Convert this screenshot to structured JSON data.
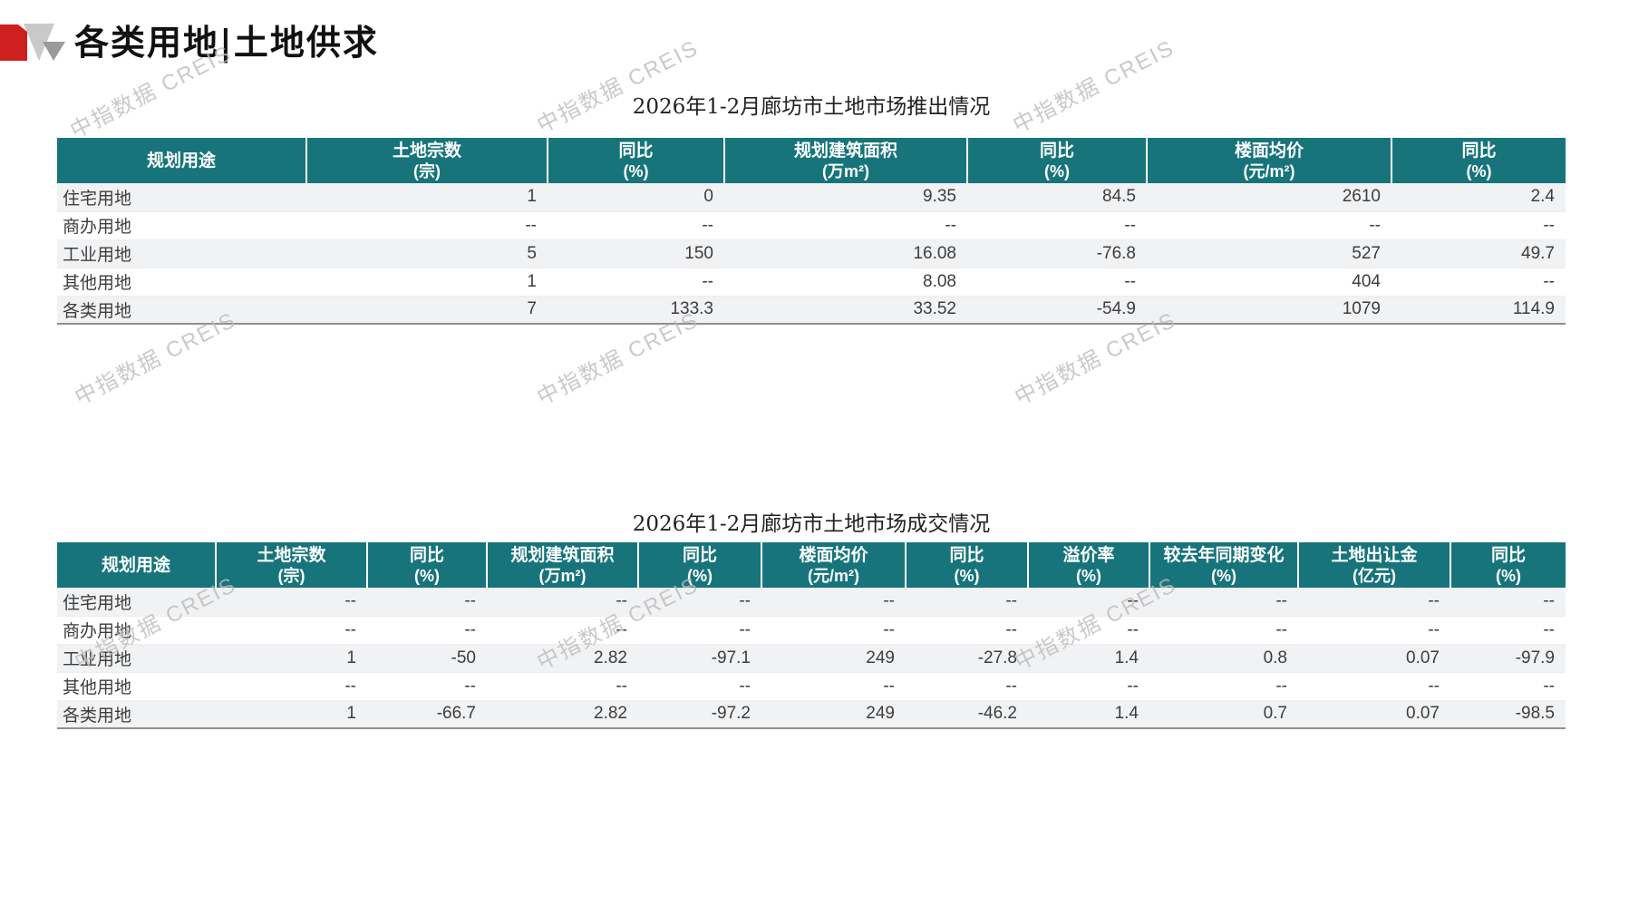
{
  "page": {
    "heading": "各类用地|土地供求",
    "watermark": "中指数据 CREIS"
  },
  "colors": {
    "header_bg": "#17747b",
    "stripe": "#f1f2f4",
    "logo_red": "#cf2020",
    "logo_gray_light": "#c9c9c9",
    "logo_gray_dark": "#9a9a9a"
  },
  "tables": [
    {
      "title": "2026年1-2月廊坊市土地市场推出情况",
      "columns": [
        {
          "label": "规划用途",
          "unit": ""
        },
        {
          "label": "土地宗数",
          "unit": "(宗)"
        },
        {
          "label": "同比",
          "unit": "(%)"
        },
        {
          "label": "规划建筑面积",
          "unit": "(万m²)"
        },
        {
          "label": "同比",
          "unit": "(%)"
        },
        {
          "label": "楼面均价",
          "unit": "(元/m²)"
        },
        {
          "label": "同比",
          "unit": "(%)"
        }
      ],
      "rows": [
        [
          "住宅用地",
          "1",
          "0",
          "9.35",
          "84.5",
          "2610",
          "2.4"
        ],
        [
          "商办用地",
          "--",
          "--",
          "--",
          "--",
          "--",
          "--"
        ],
        [
          "工业用地",
          "5",
          "150",
          "16.08",
          "-76.8",
          "527",
          "49.7"
        ],
        [
          "其他用地",
          "1",
          "--",
          "8.08",
          "--",
          "404",
          "--"
        ],
        [
          "各类用地",
          "7",
          "133.3",
          "33.52",
          "-54.9",
          "1079",
          "114.9"
        ]
      ]
    },
    {
      "title": "2026年1-2月廊坊市土地市场成交情况",
      "columns": [
        {
          "label": "规划用途",
          "unit": ""
        },
        {
          "label": "土地宗数",
          "unit": "(宗)"
        },
        {
          "label": "同比",
          "unit": "(%)"
        },
        {
          "label": "规划建筑面积",
          "unit": "(万m²)"
        },
        {
          "label": "同比",
          "unit": "(%)"
        },
        {
          "label": "楼面均价",
          "unit": "(元/m²)"
        },
        {
          "label": "同比",
          "unit": "(%)"
        },
        {
          "label": "溢价率",
          "unit": "(%)"
        },
        {
          "label": "较去年同期变化",
          "unit": "(%)"
        },
        {
          "label": "土地出让金",
          "unit": "(亿元)"
        },
        {
          "label": "同比",
          "unit": "(%)"
        }
      ],
      "rows": [
        [
          "住宅用地",
          "--",
          "--",
          "--",
          "--",
          "--",
          "--",
          "--",
          "--",
          "--",
          "--"
        ],
        [
          "商办用地",
          "--",
          "--",
          "--",
          "--",
          "--",
          "--",
          "--",
          "--",
          "--",
          "--"
        ],
        [
          "工业用地",
          "1",
          "-50",
          "2.82",
          "-97.1",
          "249",
          "-27.8",
          "1.4",
          "0.8",
          "0.07",
          "-97.9"
        ],
        [
          "其他用地",
          "--",
          "--",
          "--",
          "--",
          "--",
          "--",
          "--",
          "--",
          "--",
          "--"
        ],
        [
          "各类用地",
          "1",
          "-66.7",
          "2.82",
          "-97.2",
          "249",
          "-46.2",
          "1.4",
          "0.7",
          "0.07",
          "-98.5"
        ]
      ]
    }
  ]
}
